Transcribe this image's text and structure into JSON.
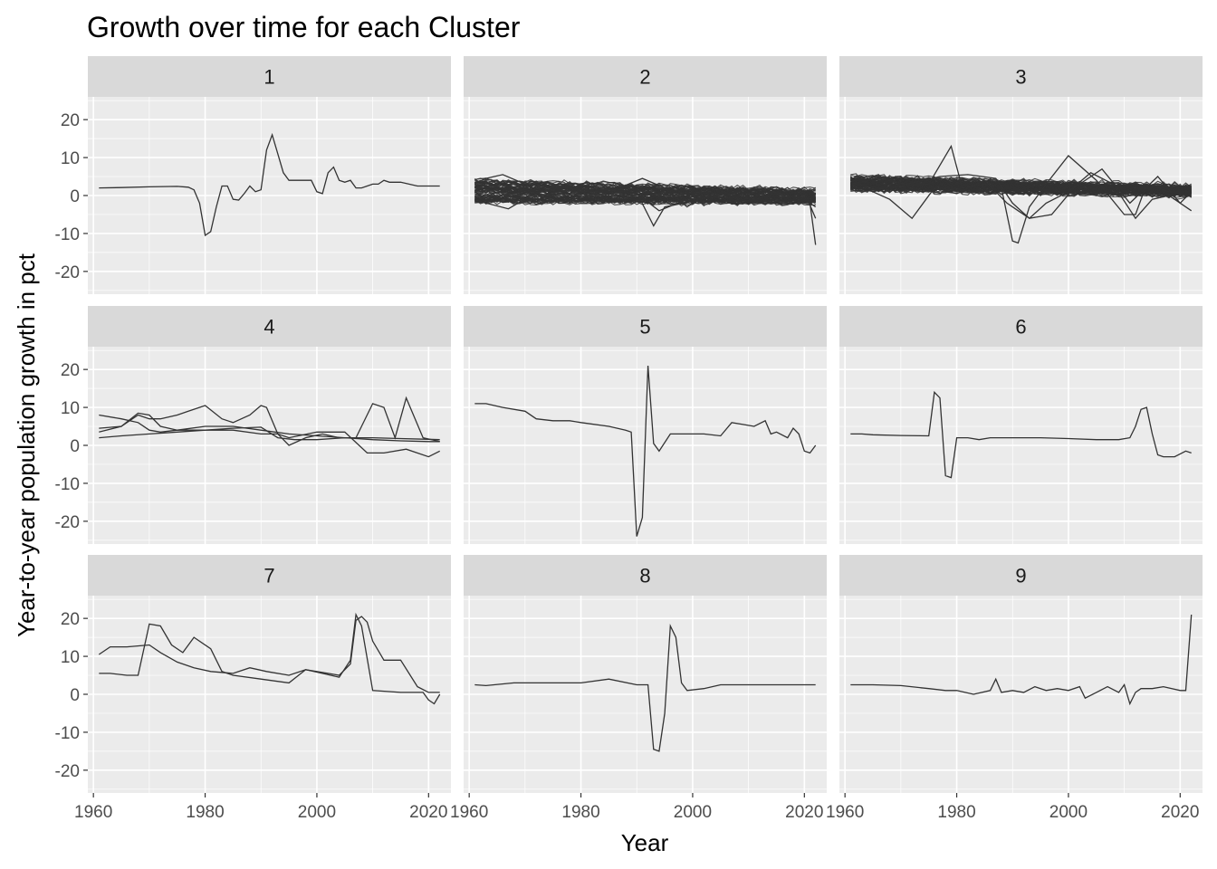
{
  "chart_data": {
    "type": "line",
    "title": "Growth over time for each Cluster",
    "xlabel": "Year",
    "ylabel": "Year-to-year population growth in pct",
    "xlim": [
      1959,
      2024
    ],
    "ylim": [
      -26,
      26
    ],
    "x_ticks": [
      1960,
      1980,
      2000,
      2020
    ],
    "y_ticks": [
      -20,
      -10,
      0,
      10,
      20
    ],
    "grid": true,
    "line_color": "#333333",
    "panel_background": "#ebebeb",
    "strip_background": "#d9d9d9",
    "facets": [
      {
        "label": "1",
        "series": [
          {
            "x": [
              1961,
              1965,
              1970,
              1975,
              1977,
              1978,
              1979,
              1980,
              1981,
              1982,
              1983,
              1984,
              1985,
              1986,
              1987,
              1988,
              1989,
              1990,
              1991,
              1992,
              1993,
              1994,
              1995,
              1996,
              1997,
              1998,
              1999,
              2000,
              2001,
              2002,
              2003,
              2004,
              2005,
              2006,
              2007,
              2008,
              2009,
              2010,
              2011,
              2012,
              2013,
              2015,
              2018,
              2022
            ],
            "y": [
              2,
              2.1,
              2.3,
              2.4,
              2.2,
              1.5,
              -2,
              -10.5,
              -9.5,
              -3,
              2.5,
              2.5,
              -1,
              -1.2,
              0.5,
              2.5,
              1,
              1.5,
              12,
              16,
              11,
              6,
              4,
              4,
              4,
              4,
              4,
              1,
              0.5,
              6,
              7.5,
              4,
              3.5,
              4,
              2,
              2,
              2.5,
              3,
              3,
              4,
              3.5,
              3.5,
              2.5,
              2.5
            ]
          }
        ]
      },
      {
        "label": "2",
        "bundle": {
          "count": 70,
          "start": [
            -2,
            4
          ],
          "end": [
            -2.5,
            2
          ],
          "spread": 2.8
        },
        "series": [
          {
            "x": [
              1961,
              1966,
              1970,
              1975,
              1980,
              1985,
              1990,
              1993,
              1995,
              2000,
              2005,
              2010,
              2015,
              2020,
              2021,
              2022
            ],
            "y": [
              2,
              1.8,
              1.5,
              1.3,
              1.1,
              0.9,
              0.8,
              -8,
              -3,
              -1.5,
              0.5,
              -1.5,
              0.5,
              -0.5,
              -2,
              -13
            ]
          },
          {
            "x": [
              1961,
              1967,
              1972,
              1978,
              1982,
              1986,
              1991,
              1995,
              1999,
              2003,
              2007,
              2012,
              2016,
              2020,
              2022
            ],
            "y": [
              -1.2,
              -3.5,
              0.8,
              2.5,
              1,
              1.5,
              4.5,
              2,
              -3,
              1,
              -2,
              1.5,
              0.5,
              -1,
              -3
            ]
          },
          {
            "x": [
              1961,
              1963,
              1966,
              1970,
              1975,
              1980,
              1985,
              1990,
              1994,
              1999,
              2004,
              2009,
              2013,
              2017,
              2020,
              2022
            ],
            "y": [
              3.2,
              4.5,
              5.5,
              3,
              2.5,
              1.5,
              1.5,
              0.5,
              -4,
              -1,
              2.5,
              -2,
              1,
              -0.5,
              1,
              -6
            ]
          }
        ]
      },
      {
        "label": "3",
        "bundle": {
          "count": 70,
          "start": [
            1.5,
            5
          ],
          "end": [
            -0.5,
            3
          ],
          "spread": 3
        },
        "series": [
          {
            "x": [
              1961,
              1965,
              1970,
              1975,
              1979,
              1981,
              1985,
              1988,
              1990,
              1991,
              1993,
              1996,
              2000,
              2005,
              2010,
              2012,
              2014,
              2018,
              2022
            ],
            "y": [
              2,
              1.5,
              2.5,
              3,
              13,
              2,
              3,
              2,
              -12,
              -12.5,
              -3,
              3,
              10.5,
              4,
              -5,
              -5,
              3,
              1,
              1
            ]
          },
          {
            "x": [
              1961,
              1965,
              1968,
              1972,
              1976,
              1980,
              1985,
              1989,
              1991,
              1993,
              1996,
              2000,
              2004,
              2008,
              2012,
              2015,
              2018,
              2022
            ],
            "y": [
              4.5,
              1,
              -1,
              -6,
              2,
              0.5,
              4,
              -2,
              -4,
              -6,
              -2,
              1,
              6,
              3,
              -6,
              -1,
              0,
              -4
            ]
          },
          {
            "x": [
              1961,
              1966,
              1971,
              1977,
              1982,
              1987,
              1990,
              1993,
              1997,
              2001,
              2006,
              2011,
              2016,
              2020,
              2022
            ],
            "y": [
              3,
              4.5,
              3,
              5,
              5.5,
              4.5,
              -2,
              -6,
              -5,
              2,
              7,
              -2,
              5,
              -2,
              1
            ]
          }
        ]
      },
      {
        "label": "4",
        "series": [
          {
            "x": [
              1961,
              1965,
              1968,
              1970,
              1972,
              1975,
              1977,
              1980,
              1983,
              1985,
              1988,
              1990,
              1991,
              1993,
              1995,
              1998,
              2001,
              2004,
              2007,
              2010,
              2012,
              2014,
              2016,
              2019,
              2022
            ],
            "y": [
              4.5,
              5,
              8,
              7,
              7,
              8,
              9,
              10.5,
              7,
              6,
              8,
              10.5,
              10,
              3,
              0,
              2,
              3,
              2,
              2,
              11,
              10,
              2,
              12.5,
              2,
              1
            ]
          },
          {
            "x": [
              1961,
              1965,
              1970,
              1975,
              1980,
              1985,
              1990,
              1993,
              1996,
              2000,
              2005,
              2010,
              2015,
              2020,
              2022
            ],
            "y": [
              2,
              2.5,
              3,
              3.5,
              4,
              4.5,
              4.8,
              2,
              1.5,
              1.5,
              2,
              2,
              1.8,
              1.6,
              1.5
            ]
          },
          {
            "x": [
              1961,
              1965,
              1968,
              1970,
              1972,
              1975,
              1980,
              1985,
              1990,
              1995,
              2000,
              2005,
              2010,
              2015,
              2020,
              2022
            ],
            "y": [
              8,
              7,
              6,
              4,
              3.5,
              4,
              5,
              5,
              4,
              3,
              2.5,
              2,
              1.5,
              1.2,
              1,
              1
            ]
          },
          {
            "x": [
              1961,
              1965,
              1968,
              1970,
              1972,
              1975,
              1980,
              1985,
              1990,
              1993,
              1995,
              2000,
              2005,
              2009,
              2012,
              2016,
              2020,
              2022
            ],
            "y": [
              3.5,
              5,
              8.5,
              8,
              5,
              4,
              4,
              4,
              3,
              3,
              2,
              3.5,
              3.5,
              -2,
              -2,
              -1,
              -3,
              -1.5
            ]
          }
        ]
      },
      {
        "label": "5",
        "series": [
          {
            "x": [
              1961,
              1963,
              1966,
              1970,
              1972,
              1975,
              1978,
              1980,
              1985,
              1988,
              1989,
              1990,
              1991,
              1992,
              1993,
              1994,
              1996,
              1998,
              2002,
              2005,
              2007,
              2009,
              2011,
              2013,
              2014,
              2015,
              2017,
              2018,
              2019,
              2020,
              2021,
              2022
            ],
            "y": [
              11,
              11,
              10,
              9,
              7,
              6.5,
              6.5,
              6,
              5,
              4,
              3.5,
              -24,
              -19,
              21,
              0.5,
              -1.5,
              3,
              3,
              3,
              2.5,
              6,
              5.5,
              5,
              6.5,
              3,
              3.5,
              2,
              4.5,
              3,
              -1.5,
              -2,
              0
            ]
          }
        ]
      },
      {
        "label": "6",
        "series": [
          {
            "x": [
              1961,
              1963,
              1965,
              1970,
              1975,
              1976,
              1977,
              1978,
              1979,
              1980,
              1982,
              1984,
              1986,
              1990,
              1995,
              2000,
              2005,
              2009,
              2011,
              2012,
              2013,
              2014,
              2015,
              2016,
              2017,
              2019,
              2021,
              2022
            ],
            "y": [
              3,
              3,
              2.8,
              2.6,
              2.5,
              14,
              12.5,
              -8,
              -8.5,
              2,
              2,
              1.5,
              2,
              2,
              2,
              1.8,
              1.5,
              1.5,
              2,
              5,
              9.5,
              10,
              3,
              -2.5,
              -3,
              -3,
              -1.5,
              -2
            ]
          }
        ]
      },
      {
        "label": "7",
        "series": [
          {
            "x": [
              1961,
              1963,
              1966,
              1970,
              1972,
              1975,
              1978,
              1981,
              1985,
              1988,
              1991,
              1995,
              1998,
              2002,
              2004,
              2006,
              2007,
              2008,
              2009,
              2010,
              2012,
              2015,
              2018,
              2020,
              2022
            ],
            "y": [
              10.5,
              12.5,
              12.5,
              13,
              11,
              8.5,
              7,
              6,
              5.5,
              7,
              6,
              5,
              6.5,
              5.5,
              5,
              8,
              19.5,
              20.5,
              19,
              14,
              9,
              9,
              2,
              0.5,
              0.5
            ]
          },
          {
            "x": [
              1961,
              1963,
              1966,
              1968,
              1970,
              1972,
              1974,
              1976,
              1978,
              1981,
              1983,
              1985,
              1990,
              1995,
              1998,
              2001,
              2004,
              2006,
              2007,
              2008,
              2010,
              2015,
              2019,
              2020,
              2021,
              2022
            ],
            "y": [
              5.5,
              5.5,
              5,
              5,
              18.5,
              18,
              13,
              11,
              15,
              12,
              6,
              5,
              4,
              3,
              6.5,
              5.5,
              4.5,
              9,
              21,
              18,
              1,
              0.5,
              0.5,
              -1.5,
              -2.5,
              0
            ]
          }
        ]
      },
      {
        "label": "8",
        "series": [
          {
            "x": [
              1961,
              1963,
              1968,
              1975,
              1980,
              1985,
              1990,
              1992,
              1993,
              1994,
              1995,
              1996,
              1997,
              1998,
              1999,
              2002,
              2005,
              2010,
              2015,
              2020,
              2022
            ],
            "y": [
              2.5,
              2.3,
              3,
              3,
              3,
              4,
              2.5,
              2.5,
              -14.5,
              -15,
              -5,
              18,
              15,
              3,
              1,
              1.5,
              2.5,
              2.5,
              2.5,
              2.5,
              2.5
            ]
          }
        ]
      },
      {
        "label": "9",
        "series": [
          {
            "x": [
              1961,
              1965,
              1970,
              1975,
              1978,
              1980,
              1983,
              1986,
              1987,
              1988,
              1990,
              1992,
              1994,
              1996,
              1998,
              2000,
              2002,
              2003,
              2005,
              2007,
              2009,
              2010,
              2011,
              2012,
              2013,
              2015,
              2017,
              2020,
              2021,
              2022
            ],
            "y": [
              2.5,
              2.5,
              2.3,
              1.5,
              1,
              1,
              0,
              1,
              4,
              0.5,
              1,
              0.5,
              2,
              1,
              1.5,
              1,
              2,
              -1,
              0.5,
              2,
              0.5,
              2.5,
              -2.5,
              0.5,
              1.5,
              1.5,
              2,
              1,
              1,
              21
            ]
          }
        ]
      }
    ]
  }
}
